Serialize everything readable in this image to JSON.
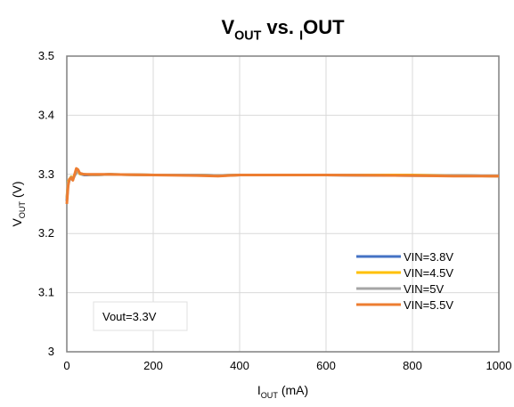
{
  "chart_data": {
    "type": "line",
    "title": [
      "V",
      "OUT",
      " vs. ",
      "I",
      "OUT"
    ],
    "x_label": [
      "I",
      "OUT",
      " (mA)"
    ],
    "y_label": [
      "V",
      "OUT",
      " (V)"
    ],
    "annotation": "Vout=3.3V",
    "x": [
      0,
      3,
      6,
      10,
      14,
      18,
      22,
      26,
      30,
      40,
      60,
      100,
      200,
      300,
      350,
      400,
      500,
      600,
      800,
      900,
      1000
    ],
    "series": [
      {
        "name": "VIN=3.8V",
        "color": "#4472c4",
        "values": [
          3.255,
          3.285,
          3.29,
          3.295,
          3.292,
          3.298,
          3.303,
          3.307,
          3.301,
          3.299,
          3.299,
          3.3,
          3.299,
          3.299,
          3.298,
          3.299,
          3.299,
          3.299,
          3.298,
          3.298,
          3.297
        ]
      },
      {
        "name": "VIN=4.5V",
        "color": "#ffc000",
        "values": [
          3.26,
          3.288,
          3.291,
          3.296,
          3.293,
          3.299,
          3.304,
          3.306,
          3.301,
          3.3,
          3.299,
          3.3,
          3.299,
          3.299,
          3.298,
          3.299,
          3.299,
          3.299,
          3.299,
          3.298,
          3.297
        ]
      },
      {
        "name": "VIN=5V",
        "color": "#a5a5a5",
        "values": [
          3.258,
          3.286,
          3.29,
          3.295,
          3.292,
          3.298,
          3.305,
          3.307,
          3.302,
          3.3,
          3.299,
          3.3,
          3.299,
          3.299,
          3.298,
          3.299,
          3.299,
          3.299,
          3.298,
          3.298,
          3.297
        ]
      },
      {
        "name": "VIN=5.5V",
        "color": "#ed7d31",
        "values": [
          3.25,
          3.28,
          3.292,
          3.294,
          3.29,
          3.3,
          3.31,
          3.308,
          3.302,
          3.3,
          3.3,
          3.3,
          3.299,
          3.298,
          3.297,
          3.299,
          3.299,
          3.299,
          3.298,
          3.297,
          3.297
        ]
      }
    ],
    "xlim": [
      0,
      1000
    ],
    "xticks": [
      0,
      200,
      400,
      600,
      800,
      1000
    ],
    "ylim": [
      3,
      3.5
    ],
    "yticks": [
      3,
      3.1,
      3.2,
      3.3,
      3.4,
      3.5
    ],
    "grid": true,
    "legend": "lower right"
  }
}
